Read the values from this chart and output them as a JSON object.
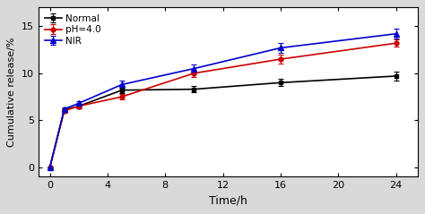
{
  "time": [
    0,
    1,
    2,
    5,
    10,
    16,
    24
  ],
  "normal_y": [
    0,
    6.1,
    6.5,
    8.2,
    8.3,
    9.0,
    9.7
  ],
  "normal_err": [
    0,
    0.15,
    0.2,
    0.3,
    0.35,
    0.4,
    0.45
  ],
  "ph_y": [
    0,
    6.0,
    6.5,
    7.5,
    10.0,
    11.5,
    13.2
  ],
  "ph_err": [
    0,
    0.2,
    0.2,
    0.3,
    0.4,
    0.5,
    0.4
  ],
  "nir_y": [
    0,
    6.2,
    6.8,
    8.8,
    10.5,
    12.7,
    14.2
  ],
  "nir_err": [
    0,
    0.2,
    0.2,
    0.4,
    0.4,
    0.5,
    0.5
  ],
  "normal_color": "#000000",
  "ph_color": "#cc0000",
  "nir_color": "#0000cc",
  "xlabel": "Time/h",
  "ylabel": "Cumulative release/%",
  "xlim": [
    -0.8,
    25.5
  ],
  "ylim": [
    -1.0,
    17.0
  ],
  "xticks": [
    0,
    4,
    8,
    12,
    16,
    20,
    24
  ],
  "yticks": [
    0,
    5,
    10,
    15
  ],
  "legend_normal": "Normal",
  "legend_ph": "pH=4.0",
  "legend_nir": "NIR",
  "outer_bg": "#d9d9d9",
  "inner_bg": "#ffffff"
}
